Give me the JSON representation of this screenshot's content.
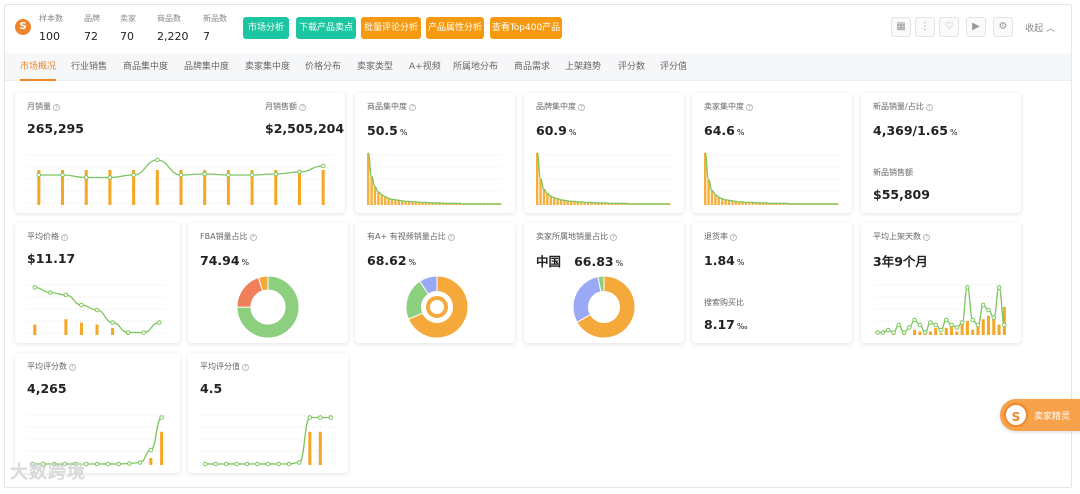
{
  "header": {
    "stats": [
      {
        "label": "样本数",
        "value": "100"
      },
      {
        "label": "品牌",
        "value": "72"
      },
      {
        "label": "卖家",
        "value": "70"
      },
      {
        "label": "商品数",
        "value": "2,220"
      },
      {
        "label": "新品数",
        "value": "7"
      }
    ],
    "buttons": [
      "市场分析",
      "下载产品卖点",
      "批量评论分析",
      "产品属性分析",
      "查看Top400产品"
    ],
    "collapse_label": "收起",
    "icons": [
      "grid-icon",
      "more-icon",
      "heart-icon",
      "video-icon",
      "settings-icon"
    ]
  },
  "tabs": [
    "市场概况",
    "行业销售",
    "商品集中度",
    "品牌集中度",
    "卖家集中度",
    "价格分布",
    "卖家类型",
    "A+视频",
    "所属地分布",
    "商品需求",
    "上架趋势",
    "评分数",
    "评分值"
  ],
  "cards": {
    "monthly": {
      "title1": "月销量",
      "value1": "265,295",
      "title2": "月销售额",
      "value2": "$2,505,204"
    },
    "product_conc": {
      "title": "商品集中度",
      "value": "50.5",
      "unit": "%"
    },
    "brand_conc": {
      "title": "品牌集中度",
      "value": "60.9",
      "unit": "%"
    },
    "seller_conc": {
      "title": "卖家集中度",
      "value": "64.6",
      "unit": "%"
    },
    "new_product": {
      "title": "新品销量/占比",
      "value": "4,369/1.65",
      "unit": "%",
      "title2": "新品销售额",
      "value2": "$55,809"
    },
    "avg_price": {
      "title": "平均价格",
      "value": "$11.17"
    },
    "fba": {
      "title": "FBA销量占比",
      "value": "74.94",
      "unit": "%"
    },
    "aplus": {
      "title": "有A+ 有视频销量占比",
      "value": "68.62",
      "unit": "%"
    },
    "seller_loc": {
      "title": "卖家所属地销量占比",
      "country": "中国",
      "value": "66.83",
      "unit": "%"
    },
    "returns": {
      "title": "退货率",
      "value": "1.84",
      "unit": "%",
      "title2": "搜索购买比",
      "value2": "8.17",
      "unit2": "‰"
    },
    "avg_days": {
      "title": "平均上架天数",
      "value": "3年9个月"
    },
    "avg_review_count": {
      "title": "平均评分数",
      "value": "4,265"
    },
    "avg_rating": {
      "title": "平均评分值",
      "value": "4.5"
    }
  },
  "float_widget": {
    "label": "卖家精灵"
  },
  "watermark": "大数跨境",
  "colors": {
    "accent": "#f0862b",
    "green_btn": "#1dc6a2",
    "orange_btn": "#f59a10",
    "bar": "#f5a623",
    "line": "#7cc55c",
    "pie_green": "#8ccf7e",
    "pie_orange": "#f6a93b",
    "pie_blue": "#9aa9f5",
    "pie_red": "#f07f5b"
  },
  "chart_data": [
    {
      "type": "bar",
      "title": "月销量",
      "note": "bars with green trend line",
      "values": [
        1,
        1,
        1,
        1,
        1,
        1,
        1,
        1,
        1,
        1,
        1,
        1,
        1
      ],
      "line": [
        0.6,
        0.6,
        0.55,
        0.55,
        0.6,
        0.9,
        0.6,
        0.62,
        0.6,
        0.6,
        0.62,
        0.66,
        0.78
      ]
    },
    {
      "type": "area",
      "title": "商品集中度",
      "values": [
        1.0,
        0.55,
        0.35,
        0.25,
        0.2,
        0.16,
        0.13,
        0.11,
        0.1,
        0.09,
        0.08,
        0.07,
        0.07,
        0.06,
        0.06,
        0.05,
        0.05,
        0.05,
        0.04,
        0.04,
        0.04,
        0.04,
        0.03,
        0.03,
        0.03,
        0.03,
        0.03,
        0.03,
        0.02,
        0.02,
        0.02,
        0.02,
        0.02,
        0.02,
        0.02,
        0.02,
        0.02,
        0.02,
        0.02,
        0.02
      ]
    },
    {
      "type": "area",
      "title": "品牌集中度",
      "values": [
        1.0,
        0.5,
        0.3,
        0.22,
        0.17,
        0.14,
        0.12,
        0.1,
        0.09,
        0.08,
        0.07,
        0.07,
        0.06,
        0.06,
        0.05,
        0.05,
        0.05,
        0.04,
        0.04,
        0.04,
        0.04,
        0.03,
        0.03,
        0.03,
        0.03,
        0.03,
        0.03,
        0.02,
        0.02,
        0.02,
        0.02,
        0.02,
        0.02,
        0.02,
        0.02,
        0.02,
        0.02,
        0.02,
        0.02,
        0.02
      ]
    },
    {
      "type": "area",
      "title": "卖家集中度",
      "values": [
        1.0,
        0.48,
        0.28,
        0.2,
        0.15,
        0.12,
        0.1,
        0.09,
        0.08,
        0.07,
        0.06,
        0.06,
        0.05,
        0.05,
        0.05,
        0.04,
        0.04,
        0.04,
        0.04,
        0.03,
        0.03,
        0.03,
        0.03,
        0.03,
        0.03,
        0.02,
        0.02,
        0.02,
        0.02,
        0.02,
        0.02,
        0.02,
        0.02,
        0.02,
        0.02,
        0.02,
        0.02,
        0.02,
        0.02,
        0.02
      ]
    },
    {
      "type": "bar",
      "title": "平均价格",
      "values": [
        0.3,
        0,
        0.45,
        0.35,
        0.3,
        0.2,
        0.05,
        0,
        0
      ],
      "line": [
        0.95,
        0.85,
        0.8,
        0.6,
        0.5,
        0.25,
        0.05,
        0.05,
        0.25
      ]
    },
    {
      "type": "pie",
      "title": "FBA销量占比",
      "slices": [
        {
          "value": 74.94,
          "color": "#8ccf7e"
        },
        {
          "value": 20,
          "color": "#f07f5b"
        },
        {
          "value": 5.06,
          "color": "#f6a93b"
        }
      ]
    },
    {
      "type": "pie",
      "title": "有A+ 有视频销量占比",
      "slices": [
        {
          "value": 68.62,
          "color": "#f6a93b"
        },
        {
          "value": 22,
          "color": "#8ccf7e"
        },
        {
          "value": 9.38,
          "color": "#9aa9f5"
        }
      ]
    },
    {
      "type": "pie",
      "title": "卖家所属地销量占比",
      "slices": [
        {
          "value": 66.83,
          "color": "#f6a93b"
        },
        {
          "value": 30,
          "color": "#9aa9f5"
        },
        {
          "value": 3.17,
          "color": "#8ccf7e"
        }
      ]
    },
    {
      "type": "bar",
      "title": "平均上架天数",
      "values": [
        0,
        0,
        0,
        0.05,
        0,
        0.1,
        0,
        0.15,
        0.1,
        0.05,
        0.1,
        0.2,
        0.05,
        0.2,
        0.3,
        0.1,
        0.35,
        0.4,
        0.15,
        0.3,
        0.45,
        0.55,
        0.5,
        0.3,
        0.8
      ],
      "line": [
        0.05,
        0.05,
        0.1,
        0.05,
        0.2,
        0.05,
        0.15,
        0.3,
        0.2,
        0.05,
        0.25,
        0.2,
        0.1,
        0.3,
        0.2,
        0.15,
        0.25,
        0.95,
        0.3,
        0.2,
        0.6,
        0.5,
        0.35,
        0.95,
        0.2
      ]
    },
    {
      "type": "bar",
      "title": "平均评分数",
      "values": [
        0,
        0,
        0,
        0,
        0,
        0,
        0,
        0,
        0,
        0,
        0,
        0.2,
        0.95
      ],
      "line": [
        0.02,
        0.02,
        0.02,
        0.02,
        0.02,
        0.02,
        0.02,
        0.02,
        0.02,
        0.03,
        0.05,
        0.3,
        0.95
      ]
    },
    {
      "type": "bar",
      "title": "平均评分值",
      "values": [
        0,
        0,
        0,
        0,
        0,
        0,
        0,
        0,
        0,
        0,
        0.95,
        0.95,
        0
      ],
      "line": [
        0.02,
        0.02,
        0.02,
        0.02,
        0.02,
        0.02,
        0.02,
        0.02,
        0.02,
        0.05,
        0.95,
        0.95,
        0.95
      ]
    }
  ]
}
